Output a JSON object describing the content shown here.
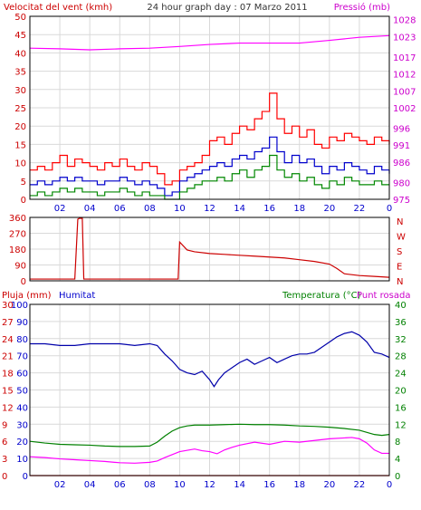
{
  "header": {
    "title": "24 hour graph day : 07 Marzo 2011",
    "left_label": "Velocitat del vent (kmh)",
    "right_label": "Pressió (mb)"
  },
  "bottom_header": {
    "rain_label": "Pluja (mm)",
    "humidity_label": "Humitat",
    "temp_label": "Temperatura (°C)",
    "dew_label": "Punt rosada"
  },
  "x_ticks": [
    "02",
    "04",
    "06",
    "08",
    "10",
    "12",
    "14",
    "16",
    "18",
    "20",
    "22",
    "0"
  ],
  "colors": {
    "frame": "#000000",
    "grid": "#d9d9d9",
    "wind_label": "#cc0000",
    "pressure_label": "#cc00cc",
    "x_tick": "#0000cc",
    "gust": "#ff0000",
    "avg_wind": "#0000cc",
    "min_wind": "#008800",
    "pressure": "#ff00ff",
    "direction": "#cc0000",
    "humidity": "#0000aa",
    "humidity_axis": "#0000cc",
    "rain_axis": "#cc0000",
    "temperature": "#008000",
    "dew_point": "#ff00ff",
    "rain": "#ff0000"
  },
  "chart_data": [
    {
      "type": "line",
      "panel": "wind-pressure",
      "x_unit": "hour",
      "xlim": [
        0,
        24
      ],
      "left_axis": {
        "label": "Velocitat del vent (kmh)",
        "lim": [
          0,
          50
        ],
        "ticks": [
          0,
          5,
          10,
          15,
          20,
          25,
          30,
          35,
          40,
          45,
          50
        ]
      },
      "right_axis": {
        "label": "Pressió (mb)",
        "lim": [
          975,
          1029
        ],
        "ticks": [
          975,
          980,
          986,
          991,
          996,
          1002,
          1007,
          1012,
          1017,
          1023,
          1028
        ]
      },
      "series": [
        {
          "key": "gust",
          "axis": "left",
          "x": [
            0,
            0.5,
            1,
            1.5,
            2,
            2.5,
            3,
            3.5,
            4,
            4.5,
            5,
            5.5,
            6,
            6.5,
            7,
            7.5,
            8,
            8.5,
            9,
            9.5,
            10,
            10.5,
            11,
            11.5,
            12,
            12.5,
            13,
            13.5,
            14,
            14.5,
            15,
            15.5,
            16,
            16.5,
            17,
            17.5,
            18,
            18.5,
            19,
            19.5,
            20,
            20.5,
            21,
            21.5,
            22,
            22.5,
            23,
            23.5,
            24
          ],
          "values": [
            8,
            9,
            8,
            10,
            12,
            9,
            11,
            10,
            9,
            8,
            10,
            9,
            11,
            9,
            8,
            10,
            9,
            7,
            4,
            5,
            8,
            9,
            10,
            12,
            16,
            17,
            15,
            18,
            20,
            19,
            22,
            24,
            29,
            22,
            18,
            20,
            17,
            19,
            15,
            14,
            17,
            16,
            18,
            17,
            16,
            15,
            17,
            16,
            15
          ]
        },
        {
          "key": "avg_wind",
          "axis": "left",
          "x": [
            0,
            0.5,
            1,
            1.5,
            2,
            2.5,
            3,
            3.5,
            4,
            4.5,
            5,
            5.5,
            6,
            6.5,
            7,
            7.5,
            8,
            8.5,
            9,
            9.5,
            10,
            10.5,
            11,
            11.5,
            12,
            12.5,
            13,
            13.5,
            14,
            14.5,
            15,
            15.5,
            16,
            16.5,
            17,
            17.5,
            18,
            18.5,
            19,
            19.5,
            20,
            20.5,
            21,
            21.5,
            22,
            22.5,
            23,
            23.5,
            24
          ],
          "values": [
            4,
            5,
            4,
            5,
            6,
            5,
            6,
            5,
            5,
            4,
            5,
            5,
            6,
            5,
            4,
            5,
            4,
            3,
            1,
            2,
            5,
            6,
            7,
            8,
            9,
            10,
            9,
            11,
            12,
            11,
            13,
            14,
            17,
            13,
            10,
            12,
            10,
            11,
            9,
            7,
            9,
            8,
            10,
            9,
            8,
            7,
            9,
            8,
            7
          ]
        },
        {
          "key": "min_wind",
          "axis": "left",
          "x": [
            0,
            0.5,
            1,
            1.5,
            2,
            2.5,
            3,
            3.5,
            4,
            4.5,
            5,
            5.5,
            6,
            6.5,
            7,
            7.5,
            8,
            8.5,
            9,
            9.5,
            10,
            10.5,
            11,
            11.5,
            12,
            12.5,
            13,
            13.5,
            14,
            14.5,
            15,
            15.5,
            16,
            16.5,
            17,
            17.5,
            18,
            18.5,
            19,
            19.5,
            20,
            20.5,
            21,
            21.5,
            22,
            22.5,
            23,
            23.5,
            24
          ],
          "values": [
            1,
            2,
            1,
            2,
            3,
            2,
            3,
            2,
            2,
            1,
            2,
            2,
            3,
            2,
            1,
            2,
            1,
            1,
            0,
            0,
            2,
            3,
            4,
            5,
            5,
            6,
            5,
            7,
            8,
            6,
            8,
            9,
            12,
            8,
            6,
            7,
            5,
            6,
            4,
            3,
            5,
            4,
            6,
            5,
            4,
            4,
            5,
            4,
            4
          ]
        },
        {
          "key": "pressure",
          "axis": "right",
          "x": [
            0,
            2,
            4,
            6,
            8,
            10,
            12,
            14,
            16,
            18,
            20,
            22,
            24
          ],
          "values": [
            1019.6,
            1019.4,
            1019.1,
            1019.4,
            1019.6,
            1020.1,
            1020.7,
            1021.1,
            1021.1,
            1021.1,
            1021.9,
            1022.8,
            1023.3
          ]
        }
      ]
    },
    {
      "type": "scatter",
      "panel": "wind-direction",
      "x_unit": "hour",
      "xlim": [
        0,
        24
      ],
      "ylim": [
        0,
        360
      ],
      "y_ticks": [
        0,
        90,
        180,
        270,
        360
      ],
      "compass_labels": [
        "N",
        "W",
        "S",
        "E",
        "N"
      ],
      "series": [
        {
          "key": "direction",
          "x": [
            0,
            1,
            2,
            3,
            3.2,
            3.3,
            3.5,
            3.6,
            4,
            5,
            6,
            7,
            8,
            9,
            9.9,
            10,
            10.5,
            11,
            12,
            13,
            14,
            15,
            16,
            17,
            18,
            19,
            20,
            20.5,
            21,
            22,
            23,
            24
          ],
          "values": [
            10,
            10,
            10,
            10,
            350,
            355,
            355,
            10,
            10,
            10,
            10,
            10,
            10,
            10,
            10,
            220,
            175,
            165,
            155,
            150,
            145,
            140,
            135,
            130,
            120,
            110,
            95,
            70,
            40,
            30,
            25,
            20
          ]
        }
      ]
    },
    {
      "type": "line",
      "panel": "humidity-temperature",
      "x_unit": "hour",
      "xlim": [
        0,
        24
      ],
      "humidity_axis": {
        "label": "Humitat",
        "lim": [
          0,
          100
        ],
        "ticks": [
          0,
          10,
          20,
          30,
          40,
          50,
          60,
          70,
          80,
          90,
          100
        ]
      },
      "rain_axis": {
        "label": "Pluja (mm)",
        "lim": [
          0,
          30
        ],
        "ticks": [
          0,
          3,
          6,
          9,
          12,
          15,
          18,
          21,
          24,
          27,
          30
        ]
      },
      "temperature_axis": {
        "label": "Temperatura (°C)",
        "lim": [
          0,
          40
        ],
        "ticks": [
          0,
          4,
          8,
          12,
          16,
          20,
          24,
          28,
          32,
          36,
          40
        ]
      },
      "series": [
        {
          "key": "humidity",
          "axis": "humidity",
          "x": [
            0,
            1,
            2,
            3,
            4,
            5,
            6,
            7,
            8,
            8.5,
            9,
            9.5,
            10,
            10.5,
            11,
            11.5,
            12,
            12.3,
            12.6,
            13,
            13.5,
            14,
            14.5,
            15,
            15.5,
            16,
            16.5,
            17,
            17.5,
            18,
            18.5,
            19,
            19.5,
            20,
            20.5,
            21,
            21.5,
            22,
            22.5,
            23,
            23.5,
            24
          ],
          "values": [
            77,
            77,
            76,
            76,
            77,
            77,
            77,
            76,
            77,
            76,
            71,
            67,
            62,
            60,
            59,
            61,
            56,
            52,
            56,
            60,
            63,
            66,
            68,
            65,
            67,
            69,
            66,
            68,
            70,
            71,
            71,
            72,
            75,
            78,
            81,
            83,
            84,
            82,
            78,
            72,
            71,
            69
          ]
        },
        {
          "key": "temperature",
          "axis": "temperature",
          "x": [
            0,
            1,
            2,
            3,
            4,
            5,
            6,
            7,
            8,
            8.5,
            9,
            9.5,
            10,
            10.5,
            11,
            12,
            13,
            14,
            15,
            16,
            17,
            18,
            19,
            20,
            21,
            22,
            22.5,
            23,
            23.5,
            24
          ],
          "values": [
            8.0,
            7.6,
            7.3,
            7.2,
            7.1,
            6.9,
            6.8,
            6.8,
            6.9,
            7.8,
            9.2,
            10.4,
            11.2,
            11.6,
            11.8,
            11.8,
            11.9,
            12.0,
            11.9,
            11.9,
            11.8,
            11.6,
            11.5,
            11.3,
            11.0,
            10.6,
            10.1,
            9.6,
            9.4,
            9.6
          ]
        },
        {
          "key": "dew_point",
          "axis": "temperature",
          "x": [
            0,
            1,
            2,
            3,
            4,
            5,
            6,
            7,
            8,
            8.5,
            9,
            10,
            11,
            11.5,
            12,
            12.5,
            13,
            13.5,
            14,
            15,
            16,
            17,
            18,
            19,
            20,
            21,
            21.5,
            22,
            22.5,
            23,
            23.5,
            24
          ],
          "values": [
            4.4,
            4.2,
            3.9,
            3.7,
            3.5,
            3.3,
            3.0,
            2.9,
            3.1,
            3.4,
            4.2,
            5.6,
            6.2,
            5.8,
            5.6,
            5.1,
            6.0,
            6.6,
            7.1,
            7.8,
            7.3,
            8.0,
            7.8,
            8.2,
            8.6,
            8.8,
            8.9,
            8.6,
            7.6,
            6.0,
            5.2,
            5.2
          ]
        },
        {
          "key": "rain",
          "axis": "rain",
          "x": [
            0,
            24
          ],
          "values": [
            0,
            0
          ]
        }
      ]
    }
  ]
}
